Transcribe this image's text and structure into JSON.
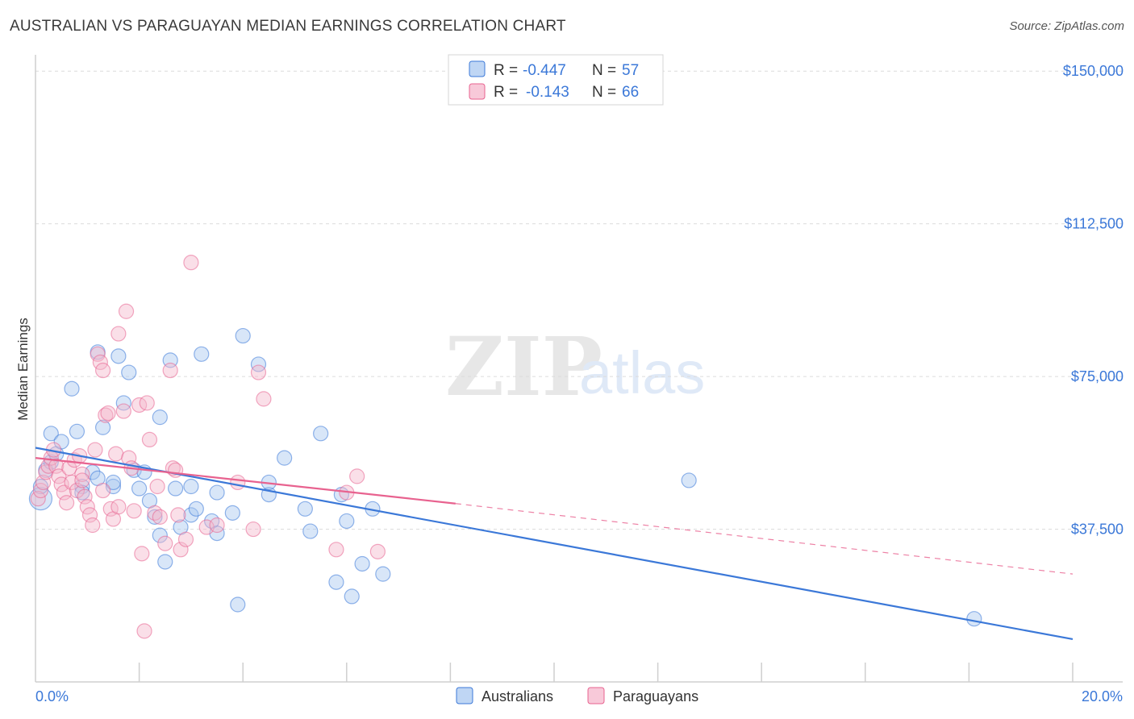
{
  "title": "AUSTRALIAN VS PARAGUAYAN MEDIAN EARNINGS CORRELATION CHART",
  "source": "Source: ZipAtlas.com",
  "watermark": {
    "zip": "ZIP",
    "atlas": "atlas"
  },
  "colors": {
    "blue": "#3b78d8",
    "blue_fill": "#a9c8f0",
    "pink": "#e8628f",
    "pink_fill": "#f5b7cc",
    "grid": "#dcdcdc",
    "axis_text": "#3b78d8"
  },
  "legend": {
    "rows": [
      {
        "r_label": "R =",
        "r_value": "-0.447",
        "n_label": "N =",
        "n_value": "57",
        "series": "Australians"
      },
      {
        "r_label": "R =",
        "r_value": "-0.143",
        "n_label": "N =",
        "n_value": "66",
        "series": "Paraguayans"
      }
    ]
  },
  "chart_data": {
    "type": "scatter",
    "title": "AUSTRALIAN VS PARAGUAYAN MEDIAN EARNINGS CORRELATION CHART",
    "xlabel": "",
    "ylabel": "Median Earnings",
    "xlim": [
      0,
      20
    ],
    "ylim": [
      0,
      154000
    ],
    "x_tick_labels": [
      "0.0%",
      "20.0%"
    ],
    "y_ticks": [
      37500,
      75000,
      112500,
      150000
    ],
    "y_tick_labels": [
      "$37,500",
      "$75,000",
      "$112,500",
      "$150,000"
    ],
    "legend_position": "bottom-center",
    "series": [
      {
        "name": "Australians",
        "r": -0.447,
        "n": 57,
        "trend": {
          "x": [
            0,
            20
          ],
          "y": [
            57500,
            10500
          ],
          "style": "solid"
        },
        "points": [
          [
            0.1,
            45000
          ],
          [
            0.1,
            48000
          ],
          [
            0.2,
            52000
          ],
          [
            0.3,
            61000
          ],
          [
            0.3,
            54000
          ],
          [
            0.4,
            56000
          ],
          [
            0.5,
            59000
          ],
          [
            0.7,
            72000
          ],
          [
            0.8,
            61500
          ],
          [
            0.9,
            48000
          ],
          [
            0.9,
            46500
          ],
          [
            1.1,
            51500
          ],
          [
            1.2,
            50000
          ],
          [
            1.2,
            81000
          ],
          [
            1.3,
            62500
          ],
          [
            1.5,
            48000
          ],
          [
            1.5,
            49000
          ],
          [
            1.6,
            80000
          ],
          [
            1.7,
            68500
          ],
          [
            1.8,
            76000
          ],
          [
            1.9,
            52000
          ],
          [
            2.0,
            47500
          ],
          [
            2.1,
            51500
          ],
          [
            2.2,
            44500
          ],
          [
            2.3,
            40500
          ],
          [
            2.4,
            36000
          ],
          [
            2.4,
            65000
          ],
          [
            2.5,
            29500
          ],
          [
            2.6,
            79000
          ],
          [
            2.7,
            47500
          ],
          [
            2.8,
            38000
          ],
          [
            3.0,
            41000
          ],
          [
            3.0,
            48000
          ],
          [
            3.1,
            42500
          ],
          [
            3.2,
            80500
          ],
          [
            3.4,
            39500
          ],
          [
            3.5,
            46500
          ],
          [
            3.5,
            36500
          ],
          [
            3.8,
            41500
          ],
          [
            3.9,
            19000
          ],
          [
            4.0,
            85000
          ],
          [
            4.3,
            78000
          ],
          [
            4.5,
            46000
          ],
          [
            4.5,
            49000
          ],
          [
            4.8,
            55000
          ],
          [
            5.2,
            42500
          ],
          [
            5.3,
            37000
          ],
          [
            5.5,
            61000
          ],
          [
            5.8,
            24500
          ],
          [
            5.9,
            46000
          ],
          [
            6.0,
            39500
          ],
          [
            6.1,
            21000
          ],
          [
            6.3,
            29000
          ],
          [
            6.5,
            42500
          ],
          [
            6.7,
            26500
          ],
          [
            12.6,
            49500
          ],
          [
            18.1,
            15500
          ]
        ]
      },
      {
        "name": "Paraguayans",
        "r": -0.143,
        "n": 66,
        "trend": {
          "x": [
            0,
            8.1,
            20
          ],
          "y": [
            55000,
            43800,
            26500
          ],
          "solid_until": 8.1
        },
        "points": [
          [
            0.05,
            45000
          ],
          [
            0.1,
            47000
          ],
          [
            0.15,
            49000
          ],
          [
            0.2,
            51500
          ],
          [
            0.25,
            53000
          ],
          [
            0.3,
            55000
          ],
          [
            0.35,
            57000
          ],
          [
            0.4,
            53000
          ],
          [
            0.45,
            50500
          ],
          [
            0.5,
            48500
          ],
          [
            0.55,
            46500
          ],
          [
            0.6,
            44000
          ],
          [
            0.65,
            52500
          ],
          [
            0.7,
            49000
          ],
          [
            0.75,
            54500
          ],
          [
            0.8,
            47000
          ],
          [
            0.85,
            55500
          ],
          [
            0.9,
            51000
          ],
          [
            0.95,
            45500
          ],
          [
            1.0,
            43000
          ],
          [
            1.05,
            41000
          ],
          [
            1.1,
            38500
          ],
          [
            1.15,
            57000
          ],
          [
            1.2,
            80500
          ],
          [
            1.25,
            78500
          ],
          [
            1.3,
            76500
          ],
          [
            1.35,
            65500
          ],
          [
            1.4,
            66000
          ],
          [
            1.45,
            42500
          ],
          [
            1.5,
            40000
          ],
          [
            1.55,
            56000
          ],
          [
            1.6,
            85500
          ],
          [
            1.7,
            66500
          ],
          [
            1.75,
            91000
          ],
          [
            1.8,
            55000
          ],
          [
            1.85,
            52500
          ],
          [
            1.9,
            42000
          ],
          [
            2.0,
            68000
          ],
          [
            2.05,
            31500
          ],
          [
            2.1,
            12500
          ],
          [
            2.15,
            68500
          ],
          [
            2.2,
            59500
          ],
          [
            2.3,
            41500
          ],
          [
            2.35,
            48000
          ],
          [
            2.4,
            40500
          ],
          [
            2.5,
            34000
          ],
          [
            2.6,
            76500
          ],
          [
            2.65,
            52500
          ],
          [
            2.7,
            52000
          ],
          [
            2.75,
            41000
          ],
          [
            2.8,
            32500
          ],
          [
            2.9,
            35000
          ],
          [
            3.0,
            103000
          ],
          [
            3.3,
            38000
          ],
          [
            3.5,
            38500
          ],
          [
            3.9,
            49000
          ],
          [
            4.2,
            37500
          ],
          [
            4.3,
            76000
          ],
          [
            4.4,
            69500
          ],
          [
            5.8,
            32500
          ],
          [
            6.0,
            46500
          ],
          [
            6.2,
            50500
          ],
          [
            6.6,
            32000
          ],
          [
            1.3,
            47000
          ],
          [
            0.9,
            49500
          ],
          [
            1.6,
            43000
          ]
        ]
      }
    ]
  },
  "bottom_legend": {
    "items": [
      "Australians",
      "Paraguayans"
    ]
  }
}
